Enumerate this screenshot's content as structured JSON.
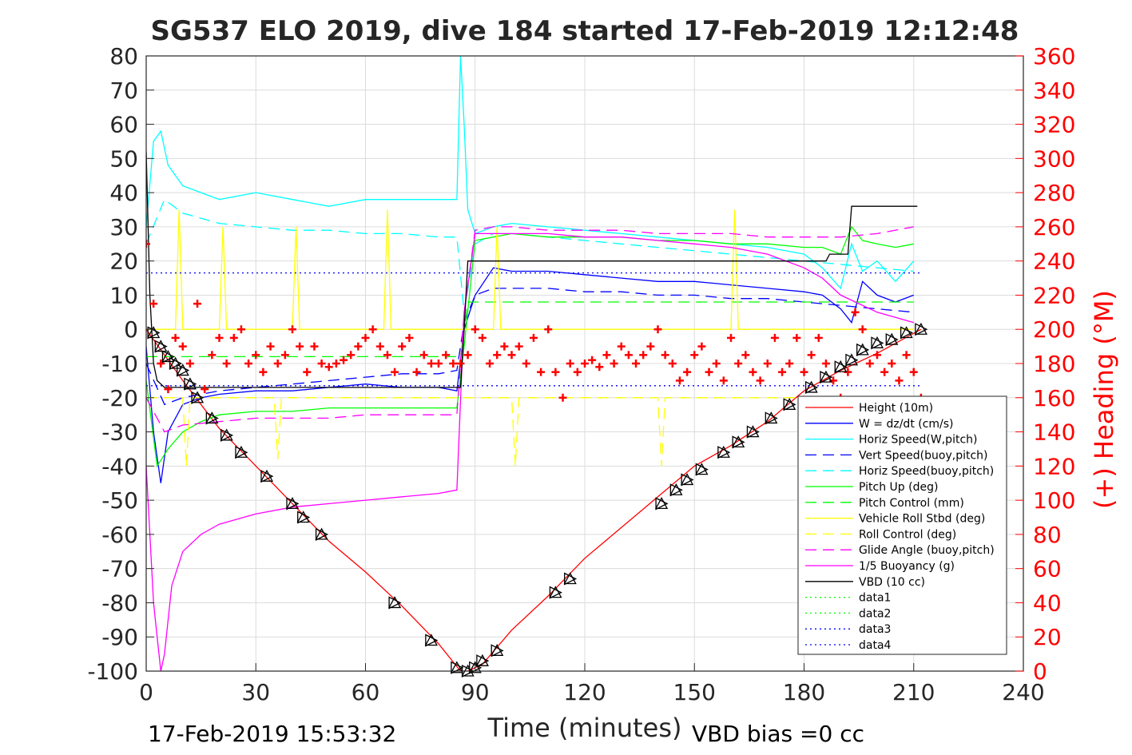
{
  "chart_data": {
    "type": "line",
    "title": "SG537 ELO 2019, dive 184 started 17-Feb-2019 12:12:48",
    "xlabel": "Time (minutes)",
    "ylabel_right": "(+) Heading (°M)",
    "xlim": [
      0,
      240
    ],
    "ylim": [
      -100,
      80
    ],
    "ylim_right": [
      0,
      360
    ],
    "x_ticks": [
      0,
      30,
      60,
      90,
      120,
      150,
      180,
      210,
      240
    ],
    "y_ticks": [
      80,
      70,
      60,
      50,
      40,
      30,
      20,
      10,
      0,
      -10,
      -20,
      -30,
      -40,
      -50,
      -60,
      -70,
      -80,
      -90,
      -100
    ],
    "y_ticks_right": [
      360,
      340,
      320,
      300,
      280,
      260,
      240,
      220,
      200,
      180,
      160,
      140,
      120,
      100,
      80,
      60,
      40,
      20,
      0
    ],
    "grid": true,
    "legend_position": "bottom-right",
    "footer_left": "17-Feb-2019 15:53:32",
    "footer_right": "VBD bias =0 cc",
    "series": [
      {
        "name": "Height (10m)",
        "color": "#ff0000",
        "style": "solid",
        "x": [
          0,
          10,
          20,
          30,
          40,
          50,
          60,
          70,
          80,
          86,
          88,
          92,
          100,
          110,
          120,
          130,
          140,
          150,
          160,
          170,
          180,
          190,
          200,
          212
        ],
        "y": [
          0,
          -15,
          -29,
          -40,
          -51,
          -62,
          -71,
          -81,
          -92,
          -100,
          -100,
          -98,
          -88,
          -78,
          -67,
          -58,
          -49,
          -40,
          -34,
          -27,
          -18,
          -12,
          -7,
          0
        ]
      },
      {
        "name": "W = dz/dt (cm/s)",
        "color": "#0000ff",
        "style": "solid",
        "x": [
          0,
          2,
          4,
          6,
          10,
          15,
          20,
          30,
          40,
          50,
          60,
          70,
          80,
          85,
          87,
          90,
          95,
          100,
          110,
          120,
          130,
          140,
          150,
          160,
          170,
          180,
          185,
          190,
          193,
          196,
          200,
          205,
          210
        ],
        "y": [
          -5,
          -30,
          -45,
          -30,
          -22,
          -20,
          -19,
          -18,
          -18,
          -17,
          -16,
          -17,
          -17,
          -18,
          0,
          10,
          18,
          17,
          17,
          16,
          15,
          14,
          14,
          13,
          12,
          11,
          10,
          6,
          2,
          14,
          10,
          8,
          10
        ]
      },
      {
        "name": "Horiz Speed(W,pitch)",
        "color": "#00ffff",
        "style": "solid",
        "x": [
          0,
          2,
          4,
          6,
          10,
          15,
          20,
          30,
          40,
          50,
          60,
          70,
          80,
          85,
          86,
          87,
          88,
          90,
          95,
          100,
          110,
          120,
          130,
          140,
          150,
          160,
          170,
          180,
          185,
          190,
          193,
          196,
          200,
          205,
          210
        ],
        "y": [
          30,
          55,
          58,
          48,
          42,
          40,
          38,
          40,
          38,
          36,
          38,
          38,
          38,
          38,
          80,
          60,
          35,
          28,
          30,
          31,
          30,
          29,
          28,
          27,
          26,
          25,
          24,
          22,
          18,
          12,
          25,
          17,
          20,
          14,
          20
        ]
      },
      {
        "name": "Vert Speed(buoy,pitch)",
        "color": "#0000ff",
        "style": "dashed",
        "x": [
          0,
          5,
          10,
          20,
          30,
          40,
          50,
          60,
          70,
          80,
          85,
          87,
          90,
          95,
          100,
          110,
          120,
          130,
          140,
          150,
          160,
          170,
          180,
          190,
          200,
          210
        ],
        "y": [
          -10,
          -22,
          -20,
          -18,
          -17,
          -16,
          -15,
          -14,
          -13,
          -13,
          -12,
          2,
          10,
          12,
          12,
          12,
          11,
          11,
          10,
          10,
          9,
          9,
          8,
          7,
          6,
          5
        ]
      },
      {
        "name": "Horiz Speed(buoy,pitch)",
        "color": "#00ffff",
        "style": "dashed",
        "x": [
          0,
          5,
          10,
          20,
          30,
          40,
          50,
          60,
          70,
          80,
          85,
          87,
          90,
          95,
          100,
          110,
          120,
          130,
          140,
          150,
          160,
          170,
          180,
          190,
          200,
          210
        ],
        "y": [
          25,
          38,
          34,
          31,
          30,
          29,
          29,
          28,
          28,
          27,
          27,
          5,
          25,
          28,
          28,
          27,
          26,
          25,
          24,
          23,
          22,
          21,
          20,
          19,
          18,
          17
        ]
      },
      {
        "name": "Pitch Up (deg)",
        "color": "#00ff00",
        "style": "solid",
        "x": [
          0,
          3,
          6,
          10,
          15,
          20,
          30,
          40,
          50,
          60,
          70,
          80,
          85,
          87,
          90,
          95,
          100,
          110,
          120,
          130,
          140,
          150,
          160,
          170,
          180,
          185,
          190,
          193,
          196,
          200,
          205,
          210
        ],
        "y": [
          -15,
          -40,
          -35,
          -30,
          -27,
          -25,
          -24,
          -24,
          -23,
          -23,
          -23,
          -23,
          -23,
          -5,
          26,
          27,
          28,
          27,
          27,
          27,
          26,
          26,
          25,
          25,
          24,
          24,
          22,
          30,
          26,
          25,
          24,
          25
        ]
      },
      {
        "name": "Pitch Control (mm)",
        "color": "#00ff00",
        "style": "dashed",
        "x": [
          0,
          10,
          20,
          30,
          40,
          50,
          60,
          70,
          80,
          86,
          88,
          100,
          110,
          120,
          130,
          140,
          150,
          160,
          170,
          180,
          190,
          200,
          210
        ],
        "y": [
          -8,
          -8,
          -8,
          -8,
          -8,
          -8,
          -8,
          -8,
          -8,
          -8,
          8,
          8,
          8,
          8,
          8,
          8,
          8,
          8,
          8,
          8,
          8,
          8,
          8
        ]
      },
      {
        "name": "Vehicle Roll Stbd (deg)",
        "color": "#ffff00",
        "style": "solid",
        "x": [
          0,
          5,
          8,
          9,
          10,
          20,
          21,
          22,
          30,
          40,
          41,
          42,
          50,
          60,
          65,
          66,
          67,
          80,
          90,
          95,
          96,
          97,
          110,
          120,
          130,
          150,
          160,
          161,
          162,
          180,
          190,
          200,
          210
        ],
        "y": [
          0,
          0,
          0,
          35,
          0,
          0,
          30,
          0,
          0,
          0,
          30,
          0,
          0,
          0,
          0,
          35,
          0,
          0,
          0,
          0,
          30,
          0,
          0,
          0,
          0,
          0,
          0,
          35,
          0,
          0,
          0,
          0,
          0
        ]
      },
      {
        "name": "Roll Control (deg)",
        "color": "#ffff00",
        "style": "dashed",
        "x": [
          0,
          10,
          11,
          12,
          30,
          35,
          36,
          37,
          60,
          85,
          88,
          100,
          101,
          102,
          120,
          140,
          141,
          142,
          160,
          180,
          200,
          210
        ],
        "y": [
          -20,
          -20,
          -40,
          -20,
          -20,
          -20,
          -38,
          -20,
          -20,
          -20,
          -20,
          -20,
          -40,
          -20,
          -20,
          -20,
          -40,
          -20,
          -20,
          -20,
          -20,
          -20
        ]
      },
      {
        "name": "Glide Angle (buoy,pitch)",
        "color": "#ff00ff",
        "style": "dashed",
        "x": [
          0,
          5,
          10,
          20,
          30,
          40,
          50,
          60,
          70,
          80,
          85,
          87,
          90,
          95,
          100,
          110,
          120,
          130,
          140,
          150,
          160,
          170,
          180,
          190,
          200,
          210
        ],
        "y": [
          -20,
          -30,
          -28,
          -27,
          -26,
          -26,
          -26,
          -25,
          -25,
          -25,
          -25,
          5,
          29,
          30,
          30,
          29,
          29,
          29,
          28,
          28,
          28,
          27,
          27,
          27,
          28,
          30
        ]
      },
      {
        "name": "1/5 Buoyancy (g)",
        "color": "#ff00ff",
        "style": "solid",
        "x": [
          0,
          2,
          3,
          4,
          5,
          7,
          10,
          15,
          20,
          30,
          40,
          50,
          60,
          70,
          80,
          85,
          87,
          90,
          95,
          100,
          110,
          120,
          130,
          140,
          150,
          160,
          170,
          180,
          185,
          190,
          200,
          210
        ],
        "y": [
          -40,
          -80,
          -90,
          -100,
          -95,
          -75,
          -65,
          -60,
          -57,
          -54,
          -52,
          -51,
          -50,
          -49,
          -48,
          -47,
          5,
          28,
          28,
          28,
          28,
          27,
          27,
          26,
          25,
          24,
          22,
          18,
          15,
          10,
          5,
          2
        ]
      },
      {
        "name": "VBD (10 cc)",
        "color": "#000000",
        "style": "solid",
        "x": [
          0,
          1,
          2,
          3,
          5,
          10,
          85,
          86,
          87,
          88,
          90,
          100,
          140,
          150,
          160,
          170,
          180,
          186,
          187,
          192,
          193,
          194,
          200,
          210,
          211
        ],
        "y": [
          52,
          10,
          -10,
          -15,
          -17,
          -17,
          -17,
          -17,
          0,
          20,
          20,
          20,
          20,
          20,
          20,
          20,
          20,
          20,
          22,
          22,
          36,
          36,
          36,
          36,
          36
        ]
      },
      {
        "name": "data1",
        "color": "#00ff00",
        "style": "dotted",
        "x": [],
        "y": []
      },
      {
        "name": "data2",
        "color": "#00ff00",
        "style": "dotted",
        "x": [],
        "y": []
      },
      {
        "name": "data3",
        "color": "#0000ff",
        "style": "dotted",
        "x": [
          0,
          212
        ],
        "y": [
          16.5,
          16.5
        ]
      },
      {
        "name": "data4",
        "color": "#0000ff",
        "style": "dotted",
        "x": [
          0,
          212
        ],
        "y": [
          -16.5,
          -16.5
        ]
      }
    ],
    "heading_series": {
      "color": "#ff0000",
      "marker": "+",
      "axis": "right",
      "x": [
        0,
        2,
        4,
        6,
        8,
        10,
        12,
        14,
        16,
        18,
        20,
        22,
        24,
        26,
        28,
        30,
        32,
        34,
        36,
        38,
        40,
        42,
        44,
        46,
        48,
        50,
        52,
        54,
        56,
        58,
        60,
        62,
        64,
        66,
        68,
        70,
        72,
        74,
        76,
        78,
        80,
        82,
        84,
        86,
        88,
        90,
        92,
        94,
        96,
        98,
        100,
        102,
        104,
        106,
        108,
        110,
        112,
        114,
        116,
        118,
        120,
        122,
        124,
        126,
        128,
        130,
        132,
        134,
        136,
        138,
        140,
        142,
        144,
        146,
        148,
        150,
        152,
        154,
        156,
        158,
        160,
        162,
        164,
        166,
        168,
        170,
        172,
        174,
        176,
        178,
        180,
        182,
        184,
        186,
        188,
        190,
        192,
        194,
        196,
        198,
        200,
        202,
        204,
        206,
        208,
        210,
        212
      ],
      "y": [
        250,
        215,
        180,
        165,
        195,
        190,
        180,
        215,
        165,
        185,
        195,
        180,
        195,
        200,
        180,
        185,
        175,
        190,
        180,
        185,
        200,
        190,
        175,
        190,
        180,
        178,
        180,
        182,
        185,
        190,
        195,
        200,
        190,
        185,
        175,
        190,
        195,
        175,
        185,
        180,
        180,
        185,
        180,
        180,
        185,
        200,
        195,
        180,
        185,
        190,
        185,
        190,
        180,
        195,
        175,
        200,
        175,
        160,
        180,
        175,
        180,
        182,
        178,
        185,
        180,
        190,
        185,
        180,
        185,
        190,
        200,
        185,
        180,
        170,
        175,
        185,
        190,
        175,
        180,
        170,
        195,
        180,
        185,
        175,
        170,
        180,
        195,
        175,
        180,
        195,
        175,
        185,
        195,
        180,
        170,
        160,
        175,
        210,
        200,
        180,
        185,
        175,
        180,
        170,
        185,
        175,
        160
      ]
    },
    "depth_markers": {
      "color": "#000000",
      "x": [
        2,
        4,
        6,
        8,
        10,
        12,
        14,
        18,
        22,
        26,
        33,
        40,
        43,
        48,
        68,
        78,
        85,
        88,
        90,
        92,
        96,
        112,
        116,
        141,
        145,
        148,
        152,
        158,
        162,
        166,
        171,
        176,
        182,
        186,
        190,
        193,
        196,
        200,
        204,
        208,
        212
      ],
      "y": [
        -1,
        -5,
        -8,
        -10,
        -12,
        -16,
        -20,
        -26,
        -31,
        -36,
        -43,
        -51,
        -55,
        -60,
        -80,
        -91,
        -99,
        -100,
        -99,
        -97,
        -94,
        -77,
        -73,
        -51,
        -47,
        -44,
        -41,
        -36,
        -33,
        -30,
        -26,
        -22,
        -17,
        -14,
        -11,
        -9,
        -6,
        -4,
        -3,
        -1,
        0
      ]
    }
  }
}
